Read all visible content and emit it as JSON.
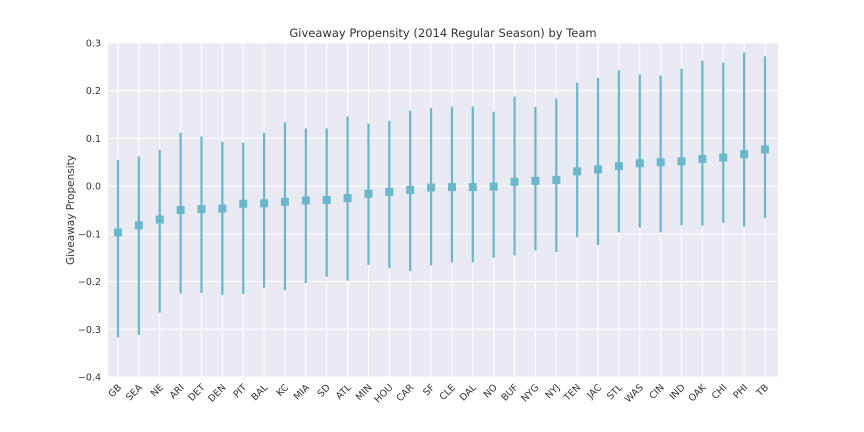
{
  "chart_data": {
    "type": "scatter",
    "title": "Giveaway Propensity (2014 Regular Season) by Team",
    "xlabel": "",
    "ylabel": "Giveaway Propensity",
    "ylim": [
      -0.4,
      0.3
    ],
    "yticks": [
      {
        "value": 0.3,
        "label": "0.3"
      },
      {
        "value": 0.2,
        "label": "0.2"
      },
      {
        "value": 0.1,
        "label": "0.1"
      },
      {
        "value": 0.0,
        "label": "0.0"
      },
      {
        "value": -0.1,
        "label": "−0.1"
      },
      {
        "value": -0.2,
        "label": "−0.2"
      },
      {
        "value": -0.3,
        "label": "−0.3"
      },
      {
        "value": -0.4,
        "label": "−0.4"
      }
    ],
    "grid": true,
    "marker_color": "#6bb7cc",
    "background_color": "#eaeaf2",
    "grid_color": "#ffffff",
    "categories": [
      "GB",
      "SEA",
      "NE",
      "ARI",
      "DET",
      "DEN",
      "PIT",
      "BAL",
      "KC",
      "MIA",
      "SD",
      "ATL",
      "MIN",
      "HOU",
      "CAR",
      "SF",
      "CLE",
      "DAL",
      "NO",
      "BUF",
      "NYG",
      "NYJ",
      "TEN",
      "JAC",
      "STL",
      "WAS",
      "CIN",
      "IND",
      "OAK",
      "CHI",
      "PHI",
      "TB"
    ],
    "values": [
      -0.097,
      -0.082,
      -0.07,
      -0.05,
      -0.048,
      -0.047,
      -0.037,
      -0.036,
      -0.033,
      -0.03,
      -0.029,
      -0.025,
      -0.016,
      -0.012,
      -0.008,
      -0.003,
      -0.002,
      -0.002,
      -0.001,
      0.009,
      0.011,
      0.013,
      0.031,
      0.035,
      0.042,
      0.048,
      0.05,
      0.052,
      0.057,
      0.06,
      0.067,
      0.077
    ],
    "lower": [
      -0.317,
      -0.312,
      -0.265,
      -0.225,
      -0.224,
      -0.228,
      -0.226,
      -0.213,
      -0.218,
      -0.203,
      -0.19,
      -0.198,
      -0.165,
      -0.172,
      -0.178,
      -0.166,
      -0.16,
      -0.16,
      -0.15,
      -0.145,
      -0.135,
      -0.138,
      -0.107,
      -0.123,
      -0.097,
      -0.087,
      -0.097,
      -0.082,
      -0.083,
      -0.077,
      -0.085,
      -0.067
    ],
    "upper": [
      0.055,
      0.062,
      0.076,
      0.112,
      0.104,
      0.093,
      0.091,
      0.112,
      0.134,
      0.121,
      0.121,
      0.146,
      0.131,
      0.137,
      0.158,
      0.164,
      0.167,
      0.167,
      0.156,
      0.188,
      0.166,
      0.184,
      0.217,
      0.227,
      0.243,
      0.234,
      0.232,
      0.246,
      0.263,
      0.259,
      0.28,
      0.272
    ]
  }
}
